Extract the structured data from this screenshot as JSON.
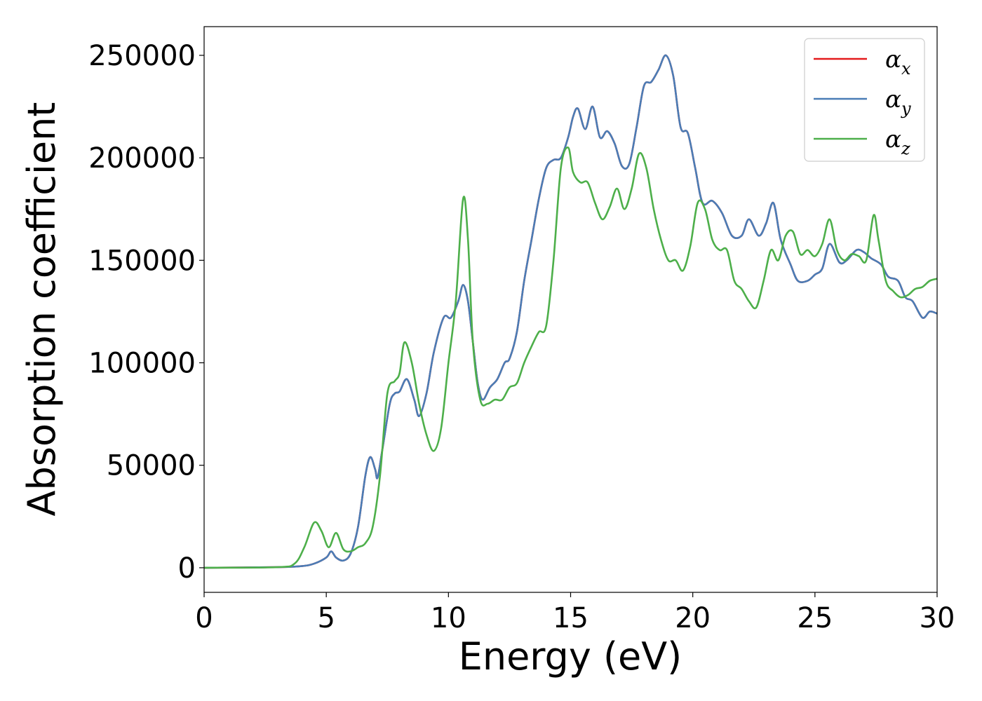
{
  "chart_data": {
    "type": "line",
    "title": "",
    "xlabel": "Energy (eV)",
    "ylabel": "Absorption coefficient",
    "xlim": [
      0,
      30
    ],
    "ylim": [
      -12000,
      264000
    ],
    "xticks": [
      0,
      5,
      10,
      15,
      20,
      25,
      30
    ],
    "yticks": [
      0,
      50000,
      100000,
      150000,
      200000,
      250000
    ],
    "grid": false,
    "legend_position": "top-right",
    "series": [
      {
        "name": "α_x",
        "symbol": "α",
        "subscript": "x",
        "color": "#e41a1c",
        "x": [
          0,
          3,
          4,
          4.5,
          5,
          5.2,
          5.4,
          5.7,
          6,
          6.3,
          6.6,
          6.8,
          7,
          7.1,
          7.3,
          7.6,
          7.8,
          8,
          8.3,
          8.6,
          8.8,
          9.1,
          9.4,
          9.8,
          10.1,
          10.4,
          10.6,
          10.8,
          11,
          11.2,
          11.4,
          11.7,
          12,
          12.3,
          12.5,
          12.8,
          13.1,
          13.4,
          13.7,
          14,
          14.3,
          14.6,
          14.9,
          15.1,
          15.3,
          15.6,
          15.9,
          16.2,
          16.5,
          16.8,
          17.1,
          17.4,
          17.7,
          18,
          18.3,
          18.6,
          18.9,
          19.2,
          19.5,
          19.8,
          20.1,
          20.4,
          20.8,
          21.2,
          21.6,
          22,
          22.3,
          22.7,
          23,
          23.3,
          23.6,
          24,
          24.3,
          24.7,
          25,
          25.3,
          25.6,
          26,
          26.3,
          26.7,
          27,
          27.3,
          27.7,
          28,
          28.4,
          28.7,
          29,
          29.4,
          29.7,
          30
        ],
        "y": [
          0,
          300,
          800,
          2000,
          5000,
          8000,
          5000,
          3500,
          7000,
          20000,
          45000,
          54000,
          48000,
          44000,
          58000,
          80000,
          85000,
          86000,
          92000,
          82000,
          74000,
          85000,
          105000,
          122000,
          122000,
          130000,
          138000,
          130000,
          110000,
          90000,
          82000,
          88000,
          92000,
          100000,
          102000,
          115000,
          140000,
          160000,
          180000,
          195000,
          199000,
          200000,
          210000,
          220000,
          224000,
          214000,
          225000,
          210000,
          213000,
          207000,
          196000,
          197000,
          215000,
          235000,
          237000,
          243000,
          250000,
          240000,
          215000,
          212000,
          195000,
          178000,
          179000,
          173000,
          162000,
          162000,
          170000,
          162000,
          168000,
          178000,
          160000,
          148000,
          140000,
          140000,
          143000,
          146000,
          158000,
          149000,
          150000,
          155000,
          154000,
          151000,
          148000,
          142000,
          140000,
          132000,
          130000,
          122000,
          125000,
          124000
        ]
      },
      {
        "name": "α_y",
        "symbol": "α",
        "subscript": "y",
        "color": "#4a7db6",
        "x": [
          0,
          3,
          4,
          4.5,
          5,
          5.2,
          5.4,
          5.7,
          6,
          6.3,
          6.6,
          6.8,
          7,
          7.1,
          7.3,
          7.6,
          7.8,
          8,
          8.3,
          8.6,
          8.8,
          9.1,
          9.4,
          9.8,
          10.1,
          10.4,
          10.6,
          10.8,
          11,
          11.2,
          11.4,
          11.7,
          12,
          12.3,
          12.5,
          12.8,
          13.1,
          13.4,
          13.7,
          14,
          14.3,
          14.6,
          14.9,
          15.1,
          15.3,
          15.6,
          15.9,
          16.2,
          16.5,
          16.8,
          17.1,
          17.4,
          17.7,
          18,
          18.3,
          18.6,
          18.9,
          19.2,
          19.5,
          19.8,
          20.1,
          20.4,
          20.8,
          21.2,
          21.6,
          22,
          22.3,
          22.7,
          23,
          23.3,
          23.6,
          24,
          24.3,
          24.7,
          25,
          25.3,
          25.6,
          26,
          26.3,
          26.7,
          27,
          27.3,
          27.7,
          28,
          28.4,
          28.7,
          29,
          29.4,
          29.7,
          30
        ],
        "y": [
          0,
          300,
          800,
          2000,
          5000,
          8000,
          5000,
          3500,
          7000,
          20000,
          45000,
          54000,
          48000,
          44000,
          58000,
          80000,
          85000,
          86000,
          92000,
          82000,
          74000,
          85000,
          105000,
          122000,
          122000,
          130000,
          138000,
          130000,
          110000,
          90000,
          82000,
          88000,
          92000,
          100000,
          102000,
          115000,
          140000,
          160000,
          180000,
          195000,
          199000,
          200000,
          210000,
          220000,
          224000,
          214000,
          225000,
          210000,
          213000,
          207000,
          196000,
          197000,
          215000,
          235000,
          237000,
          243000,
          250000,
          240000,
          215000,
          212000,
          195000,
          178000,
          179000,
          173000,
          162000,
          162000,
          170000,
          162000,
          168000,
          178000,
          160000,
          148000,
          140000,
          140000,
          143000,
          146000,
          158000,
          149000,
          150000,
          155000,
          154000,
          151000,
          148000,
          142000,
          140000,
          132000,
          130000,
          122000,
          125000,
          124000
        ]
      },
      {
        "name": "α_z",
        "symbol": "α",
        "subscript": "z",
        "color": "#4daf4a",
        "x": [
          0,
          3,
          3.7,
          4.1,
          4.5,
          4.8,
          5.1,
          5.4,
          5.7,
          6,
          6.3,
          6.6,
          6.9,
          7.2,
          7.5,
          7.8,
          8,
          8.2,
          8.5,
          8.8,
          9.1,
          9.4,
          9.7,
          10,
          10.3,
          10.6,
          10.8,
          11,
          11.3,
          11.6,
          11.9,
          12.2,
          12.5,
          12.8,
          13.1,
          13.4,
          13.7,
          14,
          14.3,
          14.6,
          14.9,
          15.1,
          15.4,
          15.7,
          16,
          16.3,
          16.6,
          16.9,
          17.2,
          17.5,
          17.8,
          18.1,
          18.4,
          18.7,
          19,
          19.3,
          19.6,
          19.9,
          20.2,
          20.5,
          20.8,
          21.1,
          21.4,
          21.7,
          22,
          22.3,
          22.6,
          22.9,
          23.2,
          23.5,
          23.8,
          24.1,
          24.4,
          24.7,
          25,
          25.3,
          25.6,
          25.9,
          26.2,
          26.5,
          26.8,
          27.1,
          27.4,
          27.6,
          27.9,
          28.2,
          28.5,
          28.8,
          29.1,
          29.4,
          29.7,
          30
        ],
        "y": [
          0,
          300,
          2000,
          10000,
          22000,
          18000,
          10000,
          17000,
          9000,
          8000,
          10000,
          12000,
          20000,
          45000,
          85000,
          91000,
          95000,
          110000,
          100000,
          80000,
          65000,
          57000,
          68000,
          100000,
          130000,
          180000,
          160000,
          110000,
          82000,
          80000,
          82000,
          82000,
          88000,
          90000,
          100000,
          108000,
          115000,
          118000,
          150000,
          195000,
          205000,
          193000,
          188000,
          188000,
          178000,
          170000,
          176000,
          185000,
          175000,
          185000,
          202000,
          195000,
          175000,
          160000,
          150000,
          150000,
          145000,
          157000,
          178000,
          175000,
          160000,
          155000,
          155000,
          140000,
          136000,
          130000,
          127000,
          140000,
          155000,
          150000,
          162000,
          164000,
          153000,
          155000,
          152000,
          158000,
          170000,
          155000,
          150000,
          153000,
          152000,
          150000,
          172000,
          160000,
          140000,
          135000,
          132000,
          133000,
          136000,
          137000,
          140000,
          141000
        ]
      }
    ]
  }
}
